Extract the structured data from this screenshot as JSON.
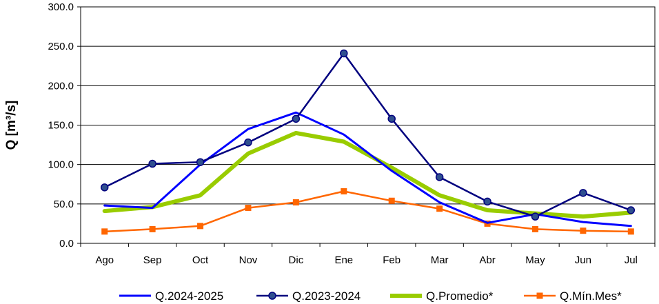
{
  "chart_data": {
    "type": "line",
    "ylabel": "Q [m³/s]",
    "ylim": [
      0,
      300
    ],
    "yticks": [
      "0.0",
      "50.0",
      "100.0",
      "150.0",
      "200.0",
      "250.0",
      "300.0"
    ],
    "grid": "horizontal",
    "legend": "bottom",
    "categories": [
      "Ago",
      "Sep",
      "Oct",
      "Nov",
      "Dic",
      "Ene",
      "Feb",
      "Mar",
      "Abr",
      "May",
      "Jun",
      "Jul"
    ],
    "series": [
      {
        "name": "Q.2024-2025",
        "color": "#0000ff",
        "marker": "none",
        "width": 3,
        "values": [
          48,
          45,
          100,
          145,
          166,
          138,
          92,
          52,
          26,
          37,
          27,
          22
        ]
      },
      {
        "name": "Q.2023-2024",
        "color": "#00007f",
        "marker": "circle",
        "width": 2.5,
        "values": [
          71,
          101,
          103,
          128,
          158,
          241,
          158,
          84,
          53,
          34,
          64,
          42
        ]
      },
      {
        "name": "Q.Promedio*",
        "color": "#99cc00",
        "marker": "none",
        "width": 6,
        "values": [
          41,
          46,
          61,
          114,
          140,
          129,
          96,
          61,
          42,
          38,
          34,
          39
        ]
      },
      {
        "name": "Q.Mín.Mes*",
        "color": "#ff6600",
        "marker": "square",
        "width": 2.5,
        "values": [
          15,
          18,
          22,
          45,
          52,
          66,
          54,
          44,
          25,
          18,
          16,
          15
        ]
      }
    ]
  }
}
